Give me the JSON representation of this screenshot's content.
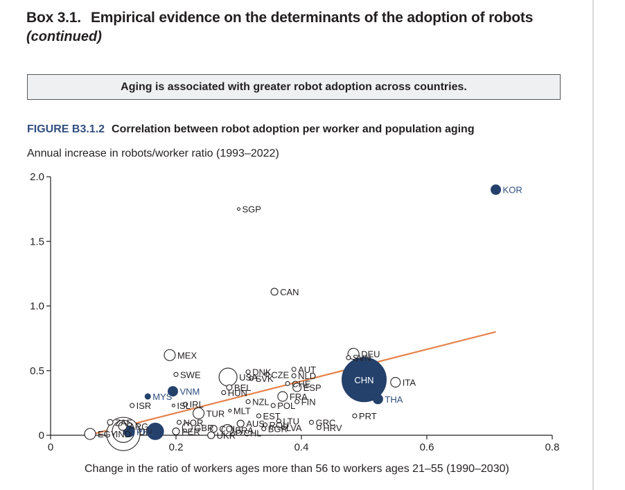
{
  "box": {
    "number": "Box 3.1.",
    "title": "Empirical evidence on the determinants of the adoption of robots",
    "subtitle": "(continued)"
  },
  "callout": "Aging is associated with greater robot adoption across countries.",
  "figure": {
    "number": "FIGURE B3.1.2",
    "title": "Correlation between robot adoption per worker and population aging"
  },
  "colors": {
    "highlight": "#24416b",
    "trend": "#e5824a",
    "label_highlight": "#2f4e7e",
    "text": "#231f20"
  },
  "chart_data": {
    "type": "scatter",
    "ylabel": "Annual increase in robots/worker ratio (1993–2022)",
    "xlabel": "Change in the ratio of workers ages more than 56 to workers ages 21–55 (1990–2030)",
    "xlim": [
      0,
      0.8
    ],
    "ylim": [
      0,
      2.0
    ],
    "x_ticks": [
      {
        "v": 0,
        "label": "0"
      },
      {
        "v": 0.2,
        "label": "0.2"
      },
      {
        "v": 0.4,
        "label": "0.4"
      },
      {
        "v": 0.6,
        "label": "0.6"
      },
      {
        "v": 0.8,
        "label": "0.8"
      }
    ],
    "y_ticks": [
      {
        "v": 0,
        "label": "0"
      },
      {
        "v": 0.5,
        "label": "0.5"
      },
      {
        "v": 1.0,
        "label": "1.0"
      },
      {
        "v": 1.5,
        "label": "1.5"
      },
      {
        "v": 2.0,
        "label": "2.0"
      }
    ],
    "trend_line": {
      "x0": 0.06,
      "y0": 0.0,
      "x1": 0.71,
      "y1": 0.8
    },
    "points": [
      {
        "label": "KOR",
        "x": 0.71,
        "y": 1.9,
        "size": 7,
        "highlight": true
      },
      {
        "label": "SGP",
        "x": 0.3,
        "y": 1.75,
        "size": 2,
        "highlight": false
      },
      {
        "label": "CAN",
        "x": 0.357,
        "y": 1.11,
        "size": 5,
        "highlight": false
      },
      {
        "label": "DEU",
        "x": 0.483,
        "y": 0.63,
        "size": 8,
        "highlight": false
      },
      {
        "label": "CHN",
        "x": 0.5,
        "y": 0.43,
        "size": 32,
        "highlight": true
      },
      {
        "label": "ITA",
        "x": 0.55,
        "y": 0.41,
        "size": 7,
        "highlight": false
      },
      {
        "label": "THA",
        "x": 0.522,
        "y": 0.28,
        "size": 7,
        "highlight": true
      },
      {
        "label": "PRT",
        "x": 0.485,
        "y": 0.15,
        "size": 3,
        "highlight": false
      },
      {
        "label": "SVN",
        "x": 0.475,
        "y": 0.6,
        "size": 3,
        "highlight": false
      },
      {
        "label": "AUT",
        "x": 0.388,
        "y": 0.51,
        "size": 3,
        "highlight": false
      },
      {
        "label": "NLD",
        "x": 0.388,
        "y": 0.46,
        "size": 3,
        "highlight": false
      },
      {
        "label": "CHE",
        "x": 0.378,
        "y": 0.4,
        "size": 3,
        "highlight": false
      },
      {
        "label": "ESP",
        "x": 0.393,
        "y": 0.37,
        "size": 6,
        "highlight": false
      },
      {
        "label": "FIN",
        "x": 0.393,
        "y": 0.26,
        "size": 3,
        "highlight": false
      },
      {
        "label": "FRA",
        "x": 0.37,
        "y": 0.3,
        "size": 7,
        "highlight": false
      },
      {
        "label": "POL",
        "x": 0.355,
        "y": 0.23,
        "size": 3,
        "highlight": false
      },
      {
        "label": "DNK",
        "x": 0.315,
        "y": 0.49,
        "size": 3,
        "highlight": false
      },
      {
        "label": "CZE",
        "x": 0.345,
        "y": 0.47,
        "size": 3,
        "highlight": false
      },
      {
        "label": "SVK",
        "x": 0.32,
        "y": 0.44,
        "size": 3,
        "highlight": false
      },
      {
        "label": "USA",
        "x": 0.283,
        "y": 0.45,
        "size": 13,
        "highlight": false
      },
      {
        "label": "BEL",
        "x": 0.285,
        "y": 0.37,
        "size": 4,
        "highlight": false
      },
      {
        "label": "HUN",
        "x": 0.276,
        "y": 0.33,
        "size": 3,
        "highlight": false
      },
      {
        "label": "NZL",
        "x": 0.315,
        "y": 0.26,
        "size": 3,
        "highlight": false
      },
      {
        "label": "MLT",
        "x": 0.286,
        "y": 0.19,
        "size": 2,
        "highlight": false
      },
      {
        "label": "EST",
        "x": 0.332,
        "y": 0.15,
        "size": 3,
        "highlight": false
      },
      {
        "label": "LTU",
        "x": 0.364,
        "y": 0.11,
        "size": 3,
        "highlight": false
      },
      {
        "label": "GRC",
        "x": 0.416,
        "y": 0.1,
        "size": 3,
        "highlight": false
      },
      {
        "label": "HRV",
        "x": 0.428,
        "y": 0.06,
        "size": 3,
        "highlight": false
      },
      {
        "label": "LVA",
        "x": 0.37,
        "y": 0.06,
        "size": 2,
        "highlight": false
      },
      {
        "label": "ROU",
        "x": 0.342,
        "y": 0.08,
        "size": 3,
        "highlight": false
      },
      {
        "label": "BGR",
        "x": 0.34,
        "y": 0.05,
        "size": 3,
        "highlight": false
      },
      {
        "label": "AUS",
        "x": 0.303,
        "y": 0.09,
        "size": 5,
        "highlight": false
      },
      {
        "label": "CHL",
        "x": 0.3,
        "y": 0.02,
        "size": 4,
        "highlight": false
      },
      {
        "label": "BRA",
        "x": 0.282,
        "y": 0.04,
        "size": 8,
        "highlight": false
      },
      {
        "label": "COL",
        "x": 0.26,
        "y": 0.05,
        "size": 5,
        "highlight": false
      },
      {
        "label": "UKR",
        "x": 0.256,
        "y": 0.0,
        "size": 5,
        "highlight": false
      },
      {
        "label": "GBR",
        "x": 0.218,
        "y": 0.06,
        "size": 7,
        "highlight": false
      },
      {
        "label": "PER",
        "x": 0.2,
        "y": 0.03,
        "size": 5,
        "highlight": false
      },
      {
        "label": "NOR",
        "x": 0.205,
        "y": 0.1,
        "size": 3,
        "highlight": false
      },
      {
        "label": "TUR",
        "x": 0.236,
        "y": 0.17,
        "size": 8,
        "highlight": false
      },
      {
        "label": "IRL",
        "x": 0.215,
        "y": 0.24,
        "size": 3,
        "highlight": false
      },
      {
        "label": "ISL",
        "x": 0.196,
        "y": 0.23,
        "size": 2,
        "highlight": false
      },
      {
        "label": "ISR",
        "x": 0.13,
        "y": 0.23,
        "size": 3,
        "highlight": false
      },
      {
        "label": "SWE",
        "x": 0.2,
        "y": 0.47,
        "size": 3,
        "highlight": false
      },
      {
        "label": "MEX",
        "x": 0.19,
        "y": 0.62,
        "size": 8,
        "highlight": false
      },
      {
        "label": "VNM",
        "x": 0.195,
        "y": 0.34,
        "size": 7,
        "highlight": true
      },
      {
        "label": "MYS",
        "x": 0.155,
        "y": 0.3,
        "size": 4,
        "highlight": true
      },
      {
        "label": "IDN",
        "x": 0.116,
        "y": 0.03,
        "size": 16,
        "highlight": false
      },
      {
        "label": "PHL",
        "x": 0.125,
        "y": 0.03,
        "size": 8,
        "highlight": true
      },
      {
        "label": "IND",
        "x": 0.116,
        "y": 0.01,
        "size": 24,
        "highlight": false
      },
      {
        "label": "ARG",
        "x": 0.115,
        "y": 0.07,
        "size": 6,
        "highlight": false
      },
      {
        "label": "ZAF",
        "x": 0.095,
        "y": 0.1,
        "size": 4,
        "highlight": false
      },
      {
        "label": "EGY",
        "x": 0.063,
        "y": 0.01,
        "size": 8,
        "highlight": false
      },
      {
        "label": "",
        "x": 0.167,
        "y": 0.03,
        "size": 12,
        "highlight": true
      }
    ]
  }
}
